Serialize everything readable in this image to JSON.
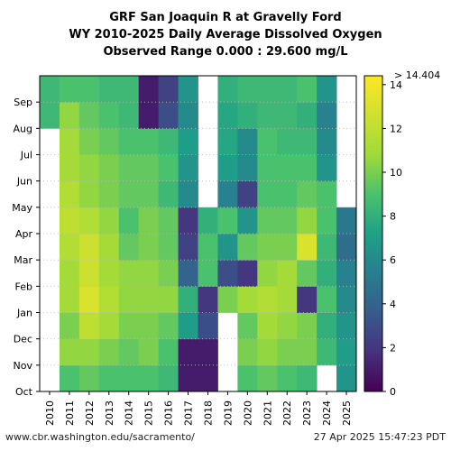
{
  "header": {
    "line1": "GRF San Joaquin R at Gravelly Ford",
    "line2": "WY 2010-2025 Daily Average Dissolved Oxygen",
    "line3": "Observed Range 0.000 : 29.600 mg/L"
  },
  "footer": {
    "url": "www.cbr.washington.edu/sacramento/",
    "timestamp": "27 Apr 2025 15:47:23 PDT"
  },
  "chart_data": {
    "type": "heatmap",
    "x_label": "",
    "y_label": "",
    "water_years": [
      "2010",
      "2011",
      "2012",
      "2013",
      "2014",
      "2015",
      "2016",
      "2017",
      "2018",
      "2019",
      "2020",
      "2021",
      "2022",
      "2023",
      "2024",
      "2025"
    ],
    "months": [
      "Oct",
      "Nov",
      "Dec",
      "Jan",
      "Feb",
      "Mar",
      "Apr",
      "May",
      "Jun",
      "Jul",
      "Aug",
      "Sep"
    ],
    "colorbar": {
      "min": 0,
      "max": 14.404,
      "ticks": [
        0,
        2,
        4,
        6,
        8,
        10,
        12,
        14
      ],
      "top_label": "> 14.404",
      "colormap": "viridis"
    },
    "monthly_mean_do_mg_per_l": [
      [
        null,
        null,
        null,
        null,
        null,
        null,
        null,
        null,
        null,
        null,
        8.5,
        8.5
      ],
      [
        9.0,
        10.5,
        10.0,
        11.0,
        11.0,
        11.5,
        12.0,
        11.5,
        11.0,
        11.0,
        10.5,
        9.0
      ],
      [
        9.5,
        10.5,
        12.0,
        13.0,
        12.5,
        12.5,
        11.5,
        10.5,
        10.5,
        10.0,
        9.5,
        9.0
      ],
      [
        9.0,
        10.0,
        11.0,
        11.5,
        11.0,
        11.0,
        10.5,
        10.0,
        10.0,
        9.5,
        9.0,
        8.5
      ],
      [
        9.0,
        9.5,
        10.0,
        10.5,
        10.5,
        9.5,
        9.0,
        9.5,
        9.5,
        9.0,
        8.5,
        8.5
      ],
      [
        9.0,
        10.0,
        10.0,
        10.5,
        10.5,
        10.0,
        10.0,
        9.5,
        9.5,
        9.0,
        1.0,
        1.0
      ],
      [
        8.5,
        9.0,
        9.5,
        10.5,
        10.0,
        9.5,
        9.5,
        8.5,
        9.0,
        8.5,
        3.0,
        2.5
      ],
      [
        1.0,
        1.0,
        7.0,
        8.0,
        4.0,
        2.5,
        2.0,
        6.0,
        6.5,
        7.0,
        6.0,
        6.5
      ],
      [
        1.0,
        1.0,
        3.0,
        2.0,
        9.0,
        9.0,
        8.0,
        null,
        null,
        null,
        null,
        null
      ],
      [
        null,
        null,
        null,
        10.0,
        3.0,
        6.5,
        9.0,
        5.5,
        7.0,
        7.5,
        7.5,
        8.0
      ],
      [
        9.0,
        10.0,
        9.5,
        11.0,
        2.0,
        9.5,
        6.5,
        2.5,
        6.0,
        6.0,
        8.0,
        8.5
      ],
      [
        9.5,
        10.5,
        11.0,
        11.5,
        10.5,
        10.0,
        9.5,
        9.0,
        9.0,
        9.0,
        8.5,
        8.5
      ],
      [
        9.0,
        10.0,
        10.5,
        11.0,
        11.0,
        10.0,
        9.5,
        9.0,
        9.0,
        8.5,
        8.5,
        8.5
      ],
      [
        8.5,
        10.0,
        10.0,
        2.0,
        9.5,
        13.0,
        10.5,
        9.5,
        9.0,
        8.5,
        8.0,
        9.0
      ],
      [
        null,
        8.5,
        8.0,
        9.0,
        8.0,
        8.5,
        9.0,
        9.0,
        6.5,
        6.0,
        5.5,
        6.5
      ],
      [
        6.5,
        7.0,
        6.5,
        6.0,
        5.5,
        4.5,
        5.0,
        null,
        null,
        null,
        null,
        null
      ]
    ]
  }
}
